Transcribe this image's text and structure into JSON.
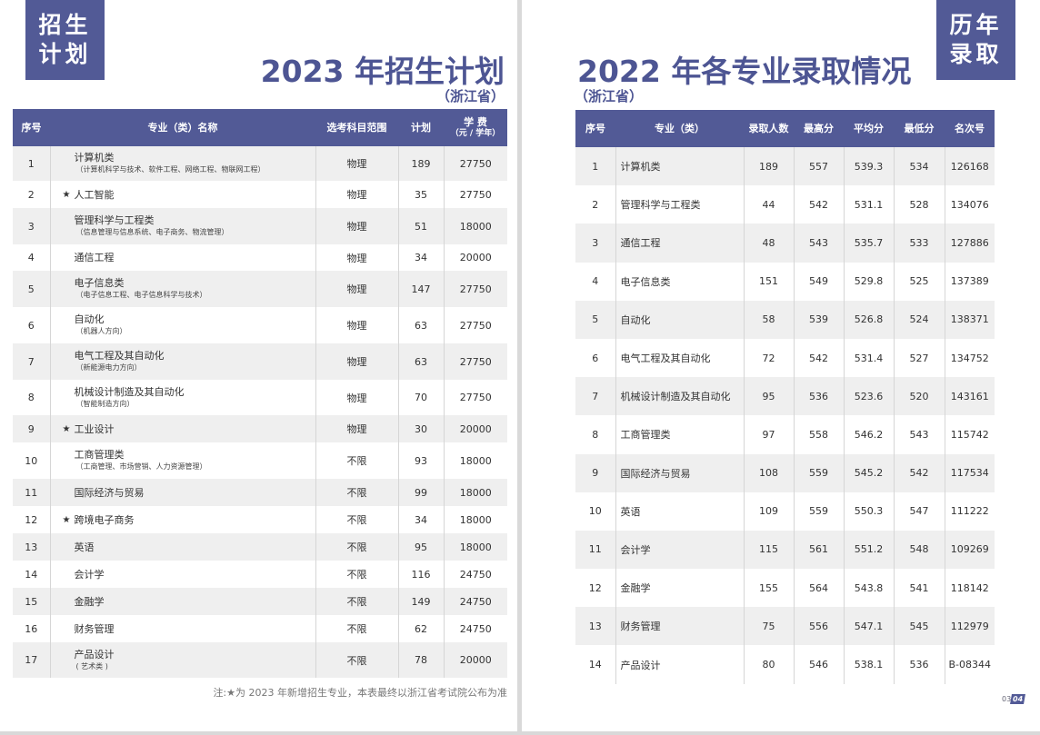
{
  "left": {
    "badge": [
      "招生",
      "计划"
    ],
    "title": "2023 年招生计划",
    "province": "（浙江省）",
    "headers": {
      "no": "序号",
      "name": "专业（类）名称",
      "subject": "选考科目范围",
      "plan": "计划",
      "fee": "学 费",
      "fee_unit": "（元 / 学年）"
    },
    "rows": [
      {
        "no": "1",
        "name": "计算机类",
        "sub": "（计算机科学与技术、软件工程、网络工程、物联网工程）",
        "new": false,
        "subject": "物理",
        "plan": "189",
        "fee": "27750"
      },
      {
        "no": "2",
        "name": "人工智能",
        "sub": "",
        "new": true,
        "subject": "物理",
        "plan": "35",
        "fee": "27750"
      },
      {
        "no": "3",
        "name": "管理科学与工程类",
        "sub": "（信息管理与信息系统、电子商务、物流管理）",
        "new": false,
        "subject": "物理",
        "plan": "51",
        "fee": "18000"
      },
      {
        "no": "4",
        "name": "通信工程",
        "sub": "",
        "new": false,
        "subject": "物理",
        "plan": "34",
        "fee": "20000"
      },
      {
        "no": "5",
        "name": "电子信息类",
        "sub": "（电子信息工程、电子信息科学与技术）",
        "new": false,
        "subject": "物理",
        "plan": "147",
        "fee": "27750"
      },
      {
        "no": "6",
        "name": "自动化",
        "sub": "（机器人方向）",
        "new": false,
        "subject": "物理",
        "plan": "63",
        "fee": "27750"
      },
      {
        "no": "7",
        "name": "电气工程及其自动化",
        "sub": "（新能源电力方向）",
        "new": false,
        "subject": "物理",
        "plan": "63",
        "fee": "27750"
      },
      {
        "no": "8",
        "name": "机械设计制造及其自动化",
        "sub": "（智能制造方向）",
        "new": false,
        "subject": "物理",
        "plan": "70",
        "fee": "27750"
      },
      {
        "no": "9",
        "name": "工业设计",
        "sub": "",
        "new": true,
        "subject": "物理",
        "plan": "30",
        "fee": "20000"
      },
      {
        "no": "10",
        "name": "工商管理类",
        "sub": "（工商管理、市场营销、人力资源管理）",
        "new": false,
        "subject": "不限",
        "plan": "93",
        "fee": "18000"
      },
      {
        "no": "11",
        "name": "国际经济与贸易",
        "sub": "",
        "new": false,
        "subject": "不限",
        "plan": "99",
        "fee": "18000"
      },
      {
        "no": "12",
        "name": "跨境电子商务",
        "sub": "",
        "new": true,
        "subject": "不限",
        "plan": "34",
        "fee": "18000"
      },
      {
        "no": "13",
        "name": "英语",
        "sub": "",
        "new": false,
        "subject": "不限",
        "plan": "95",
        "fee": "18000"
      },
      {
        "no": "14",
        "name": "会计学",
        "sub": "",
        "new": false,
        "subject": "不限",
        "plan": "116",
        "fee": "24750"
      },
      {
        "no": "15",
        "name": "金融学",
        "sub": "",
        "new": false,
        "subject": "不限",
        "plan": "149",
        "fee": "24750"
      },
      {
        "no": "16",
        "name": "财务管理",
        "sub": "",
        "new": false,
        "subject": "不限",
        "plan": "62",
        "fee": "24750"
      },
      {
        "no": "17",
        "name": "产品设计",
        "sub": "( 艺术类 )",
        "new": false,
        "subject": "不限",
        "plan": "78",
        "fee": "20000"
      }
    ],
    "star": "★",
    "note": "注:★为 2023 年新增招生专业，本表最终以浙江省考试院公布为准"
  },
  "right": {
    "badge": [
      "历年",
      "录取"
    ],
    "title": "2022 年各专业录取情况",
    "province": "（浙江省）",
    "headers": [
      "序号",
      "专业（类）",
      "录取人数",
      "最高分",
      "平均分",
      "最低分",
      "名次号"
    ],
    "rows": [
      [
        "1",
        "计算机类",
        "189",
        "557",
        "539.3",
        "534",
        "126168"
      ],
      [
        "2",
        "管理科学与工程类",
        "44",
        "542",
        "531.1",
        "528",
        "134076"
      ],
      [
        "3",
        "通信工程",
        "48",
        "543",
        "535.7",
        "533",
        "127886"
      ],
      [
        "4",
        "电子信息类",
        "151",
        "549",
        "529.8",
        "525",
        "137389"
      ],
      [
        "5",
        "自动化",
        "58",
        "539",
        "526.8",
        "524",
        "138371"
      ],
      [
        "6",
        "电气工程及其自动化",
        "72",
        "542",
        "531.4",
        "527",
        "134752"
      ],
      [
        "7",
        "机械设计制造及其自动化",
        "95",
        "536",
        "523.6",
        "520",
        "143161"
      ],
      [
        "8",
        "工商管理类",
        "97",
        "558",
        "546.2",
        "543",
        "115742"
      ],
      [
        "9",
        "国际经济与贸易",
        "108",
        "559",
        "545.2",
        "542",
        "117534"
      ],
      [
        "10",
        "英语",
        "109",
        "559",
        "550.3",
        "547",
        "111222"
      ],
      [
        "11",
        "会计学",
        "115",
        "561",
        "551.2",
        "548",
        "109269"
      ],
      [
        "12",
        "金融学",
        "155",
        "564",
        "543.8",
        "541",
        "118142"
      ],
      [
        "13",
        "财务管理",
        "75",
        "556",
        "547.1",
        "545",
        "112979"
      ],
      [
        "14",
        "产品设计",
        "80",
        "546",
        "538.1",
        "536",
        "B-08344"
      ]
    ]
  },
  "page_numbers": {
    "left": "03",
    "right": "04"
  },
  "colors": {
    "accent": "#525a96",
    "stripe": "#efefef"
  }
}
